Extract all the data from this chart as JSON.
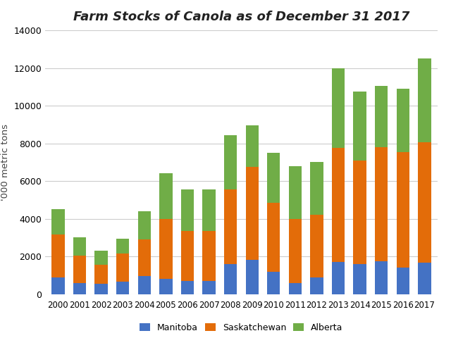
{
  "title": "Farm Stocks of Canola as of December 31 2017",
  "ylabel": "'000 metric tons",
  "years": [
    2000,
    2001,
    2002,
    2003,
    2004,
    2005,
    2006,
    2007,
    2008,
    2009,
    2010,
    2011,
    2012,
    2013,
    2014,
    2015,
    2016,
    2017
  ],
  "manitoba": [
    900,
    600,
    550,
    650,
    950,
    800,
    700,
    700,
    1600,
    1800,
    1200,
    600,
    900,
    1700,
    1600,
    1750,
    1400,
    1650
  ],
  "saskatchewan": [
    2250,
    1450,
    1000,
    1500,
    1950,
    3200,
    2650,
    2650,
    3950,
    4950,
    3650,
    3400,
    3300,
    6050,
    5500,
    6050,
    6150,
    6400
  ],
  "alberta": [
    1350,
    950,
    750,
    800,
    1500,
    2400,
    2200,
    2200,
    2900,
    2200,
    2650,
    2800,
    2800,
    4250,
    3650,
    3250,
    3350,
    4450
  ],
  "colors": {
    "manitoba": "#4472C4",
    "saskatchewan": "#E36C09",
    "alberta": "#70AD47"
  },
  "ylim": [
    0,
    14000
  ],
  "yticks": [
    0,
    2000,
    4000,
    6000,
    8000,
    10000,
    12000,
    14000
  ],
  "background_color": "#FFFFFF",
  "legend_labels": [
    "Manitoba",
    "Saskatchewan",
    "Alberta"
  ]
}
